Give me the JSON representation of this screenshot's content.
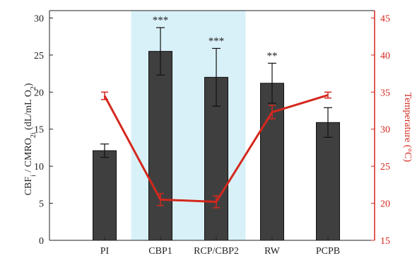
{
  "chart_data": {
    "type": "bar",
    "categories": [
      "PI",
      "CBP1",
      "RCP/CBP2",
      "RW",
      "PCPB"
    ],
    "highlight_categories": [
      "CBP1",
      "RCP/CBP2"
    ],
    "series": [
      {
        "axis": "left",
        "kind": "bar",
        "values": [
          12.1,
          25.5,
          22.0,
          21.2,
          15.9
        ],
        "error": [
          0.9,
          3.2,
          3.9,
          2.7,
          2.0
        ],
        "significance": [
          "",
          "***",
          "***",
          "**",
          ""
        ]
      },
      {
        "axis": "right",
        "kind": "line",
        "values": [
          34.5,
          20.5,
          20.2,
          32.3,
          34.6
        ],
        "error": [
          0.5,
          0.8,
          0.8,
          0.9,
          0.4
        ]
      }
    ],
    "ylabel": "CBF",
    "ylabel_sub1": "i",
    "ylabel_mid": " / CMRO",
    "ylabel_sub2": "2i",
    "ylabel_tail": " (dL/mL O",
    "ylabel_sub3": "2",
    "ylabel_end": ")",
    "y2label": "Temperature (°C)",
    "ylim": [
      0,
      31
    ],
    "y2lim": [
      15,
      46
    ],
    "yticks": [
      "0",
      "5",
      "10",
      "15",
      "20",
      "25",
      "30"
    ],
    "y2ticks": [
      "15",
      "20",
      "25",
      "30",
      "35",
      "40",
      "45"
    ],
    "colors": {
      "bar": "#3f3f3f",
      "bar_edge": "#111111",
      "line": "#d4281e",
      "highlight": "#d8f1f8",
      "axis": "#222222",
      "right_axis": "#d4281e"
    }
  }
}
